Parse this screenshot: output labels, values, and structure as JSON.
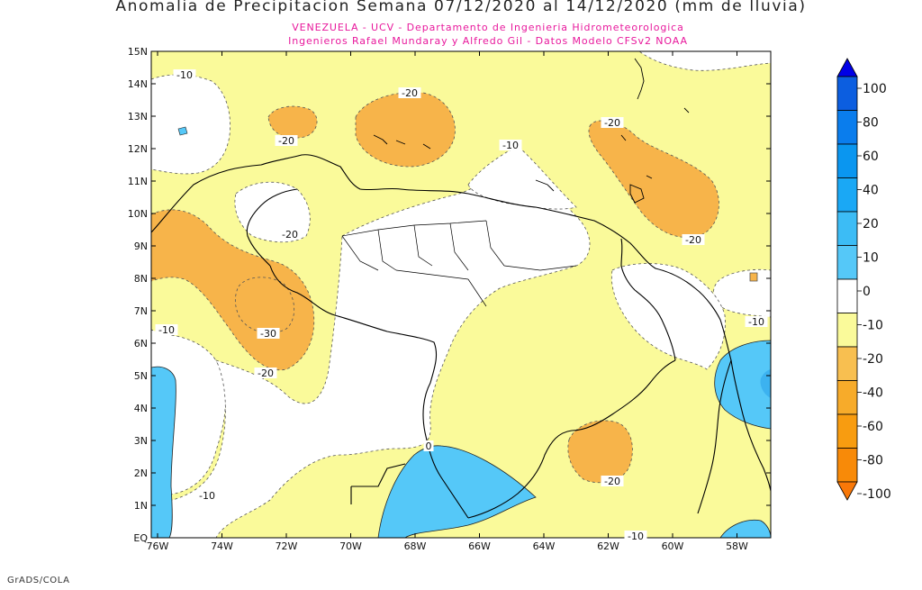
{
  "title": "Anomalia de Precipitacion Semana 07/12/2020 al 14/12/2020 (mm de lluvia)",
  "subtitle_line1": "VENEZUELA - UCV - Departamento de Ingenieria Hidrometeorologica",
  "subtitle_line2": "Ingenieros Rafael Mundaray y Alfredo Gil - Datos Modelo CFSv2 NOAA",
  "footer": "GrADS/COLA",
  "map": {
    "lat_labels": [
      "15N",
      "14N",
      "13N",
      "12N",
      "11N",
      "10N",
      "9N",
      "8N",
      "7N",
      "6N",
      "5N",
      "4N",
      "3N",
      "2N",
      "1N",
      "EQ"
    ],
    "lon_labels": [
      "76W",
      "74W",
      "72W",
      "70W",
      "68W",
      "66W",
      "64W",
      "62W",
      "60W",
      "58W"
    ],
    "contour_labels": [
      "-10",
      "-20",
      "-20",
      "-20",
      "-10",
      "-20",
      "-20",
      "-10",
      "-30",
      "-20",
      "-10",
      "-10",
      "0",
      "-20",
      "-10"
    ]
  },
  "colorbar": {
    "labels": [
      "100",
      "80",
      "60",
      "40",
      "20",
      "10",
      "0",
      "-10",
      "-20",
      "-40",
      "-60",
      "-80",
      "-100"
    ],
    "colors": [
      "#0000e6",
      "#0c5ee0",
      "#0a7ded",
      "#0a96f0",
      "#1aa8f5",
      "#3cbcf5",
      "#55c8f8",
      "#ffffff",
      "#fafa9a",
      "#f8bf50",
      "#f7ab2a",
      "#f89c10",
      "#f88a08",
      "#f87808"
    ]
  },
  "legend_colors": {
    "land": "#ffffff",
    "lt_minus10": "#fafa9a",
    "lt_minus20": "#f7b44a",
    "positive": "#55c8f8",
    "border": "#000000"
  }
}
